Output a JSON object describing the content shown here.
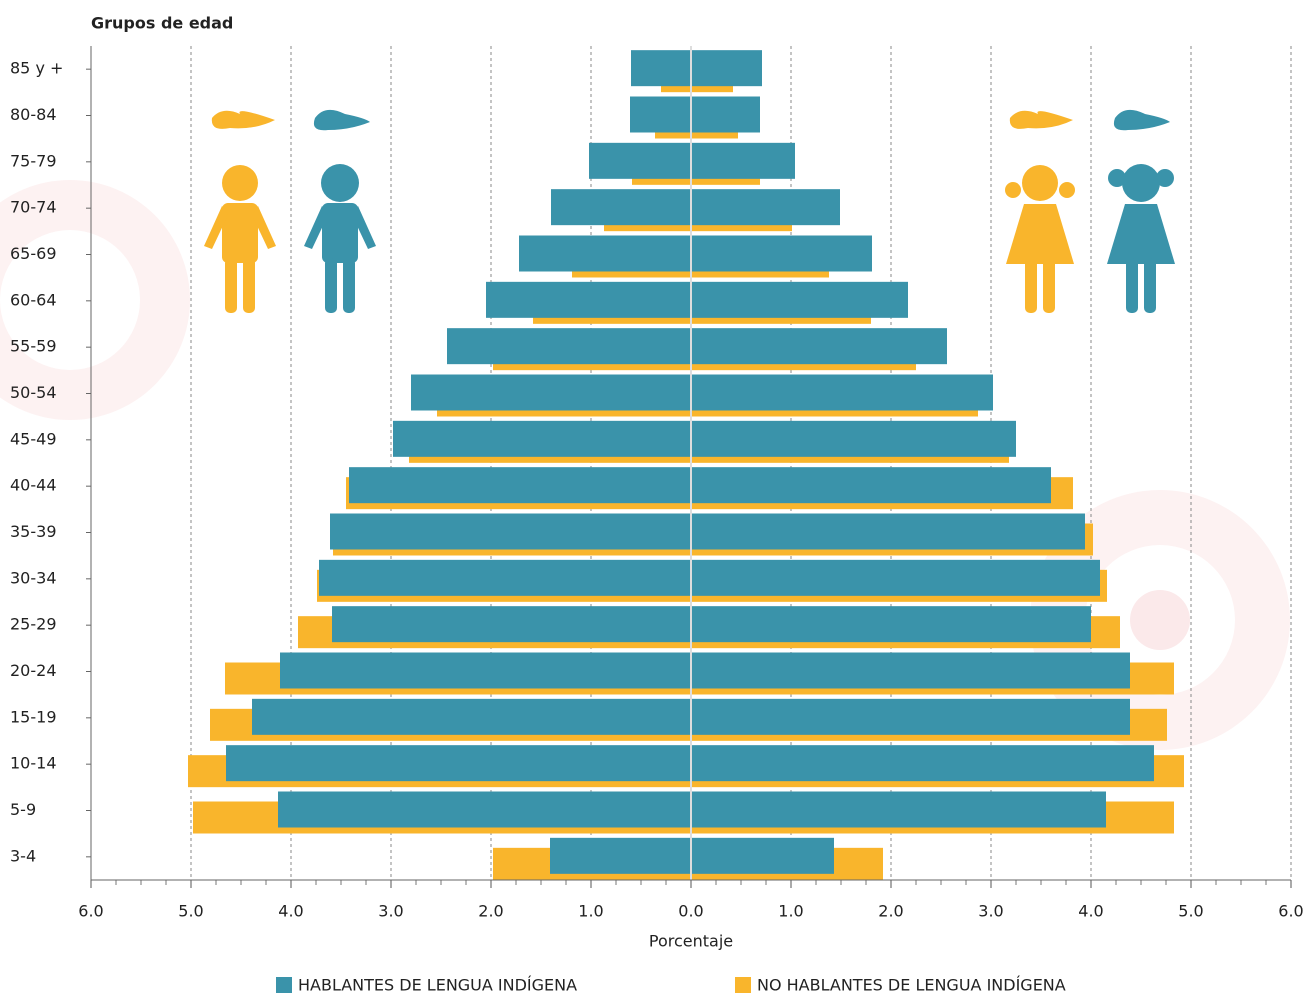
{
  "chart_data": {
    "type": "pyramid",
    "y_axis_title": "Grupos de edad",
    "x_axis_title": "Porcentaje",
    "categories": [
      "85 y +",
      "80-84",
      "75-79",
      "70-74",
      "65-69",
      "60-64",
      "55-59",
      "50-54",
      "45-49",
      "40-44",
      "35-39",
      "30-34",
      "25-29",
      "20-24",
      "15-19",
      "10-14",
      "5-9",
      "3-4"
    ],
    "series": [
      {
        "name": "NO HABLANTES DE LENGUA INDÍGENA",
        "color": "#f9b52c",
        "left": [
          0.3,
          0.36,
          0.59,
          0.87,
          1.19,
          1.58,
          1.98,
          2.54,
          2.82,
          3.45,
          3.58,
          3.74,
          3.93,
          4.66,
          4.81,
          5.03,
          4.98,
          1.98
        ],
        "right": [
          0.42,
          0.47,
          0.69,
          1.01,
          1.38,
          1.8,
          2.25,
          2.87,
          3.18,
          3.82,
          4.02,
          4.16,
          4.29,
          4.83,
          4.76,
          4.93,
          4.83,
          1.92
        ]
      },
      {
        "name": "HABLANTES DE LENGUA INDÍGENA",
        "color": "#3a93aa",
        "left": [
          0.6,
          0.61,
          1.02,
          1.4,
          1.72,
          2.05,
          2.44,
          2.8,
          2.98,
          3.42,
          3.61,
          3.72,
          3.59,
          4.11,
          4.39,
          4.65,
          4.13,
          1.41
        ],
        "right": [
          0.71,
          0.69,
          1.04,
          1.49,
          1.81,
          2.17,
          2.56,
          3.02,
          3.25,
          3.6,
          3.94,
          4.09,
          4.0,
          4.39,
          4.39,
          4.63,
          4.15,
          1.43
        ]
      }
    ],
    "legend_order": [
      1,
      0
    ],
    "xlim": [
      -6,
      6
    ],
    "xticks": [
      {
        "value": -6,
        "label": "6.0"
      },
      {
        "value": -5,
        "label": "5.0"
      },
      {
        "value": -4,
        "label": "4.0"
      },
      {
        "value": -3,
        "label": "3.0"
      },
      {
        "value": -2,
        "label": "2.0"
      },
      {
        "value": -1,
        "label": "1.0"
      },
      {
        "value": 0,
        "label": "0.0"
      },
      {
        "value": 1,
        "label": "1.0"
      },
      {
        "value": 2,
        "label": "2.0"
      },
      {
        "value": 3,
        "label": "3.0"
      },
      {
        "value": 4,
        "label": "4.0"
      },
      {
        "value": 5,
        "label": "5.0"
      },
      {
        "value": 6,
        "label": "6.0"
      }
    ],
    "grid": true
  }
}
